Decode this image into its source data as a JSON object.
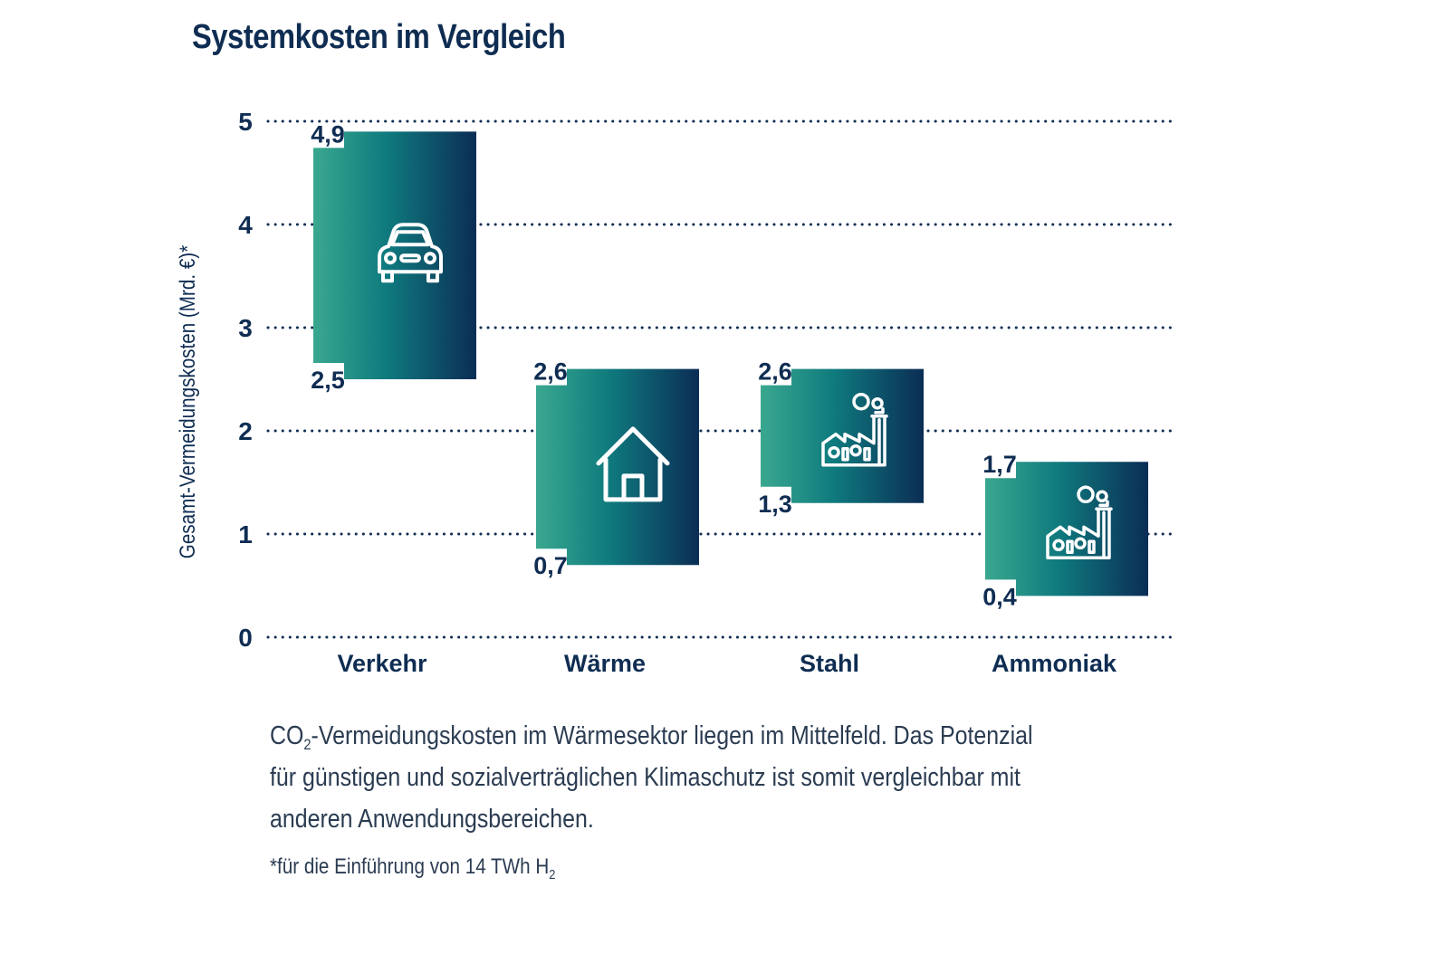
{
  "title": "Systemkosten im Vergleich",
  "caption": {
    "co2_prefix": "CO",
    "co2_subscript": "2",
    "text_line1_rest": "-Vermeidungskosten im Wärmesektor liegen im Mittelfeld. Das Potenzial",
    "text_line2": "für günstigen und sozialverträglichen Klimaschutz ist somit vergleichbar mit",
    "text_line3": "anderen Anwendungsbereichen."
  },
  "footnote": {
    "text": "*für die Einführung von 14 TWh H",
    "subscript": "2"
  },
  "colors": {
    "text": "#0f2d52",
    "gradient_start": "#3aa88f",
    "gradient_mid": "#0f7a7e",
    "gradient_end": "#0b2d55",
    "grid": "#0f2d52"
  },
  "chart_data": {
    "type": "bar",
    "subtype": "floating-range",
    "ylabel": "Gesamt-Vermeidungskosten (Mrd. €)*",
    "ylim": [
      0,
      5
    ],
    "yticks": [
      0,
      1,
      2,
      3,
      4,
      5
    ],
    "ytick_labels": [
      "0",
      "1",
      "2",
      "3",
      "4",
      "5"
    ],
    "grid": "dotted horizontal",
    "categories": [
      "Verkehr",
      "Wärme",
      "Stahl",
      "Ammoniak"
    ],
    "low": [
      2.5,
      0.7,
      1.3,
      0.4
    ],
    "high": [
      4.9,
      2.6,
      2.6,
      1.7
    ],
    "low_labels": [
      "2,5",
      "0,7",
      "1,3",
      "0,4"
    ],
    "high_labels": [
      "4,9",
      "2,6",
      "2,6",
      "1,7"
    ],
    "icons": [
      "car-icon",
      "house-icon",
      "factory-icon",
      "factory-icon"
    ]
  }
}
